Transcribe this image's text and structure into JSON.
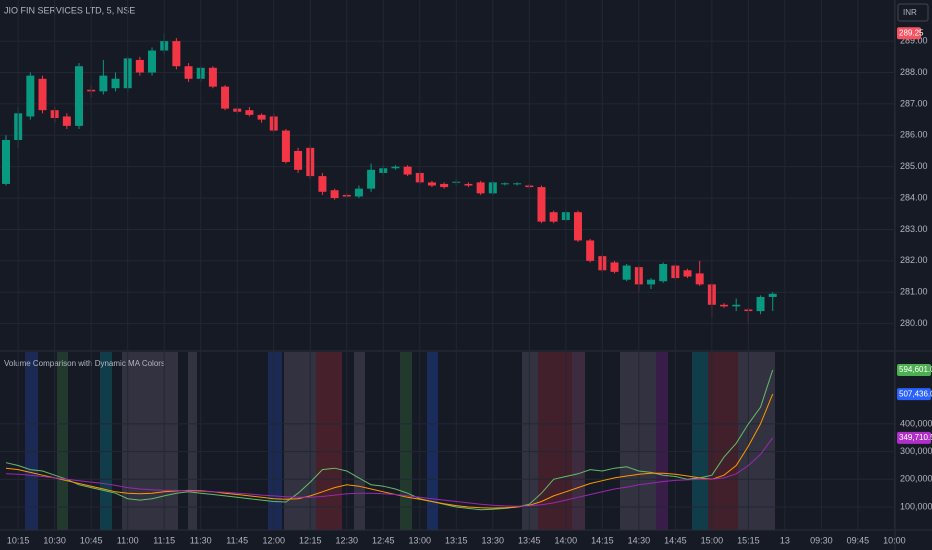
{
  "chart_data": [
    {
      "type": "candlestick",
      "title": "JIO FIN SERVICES LTD, 5, NSE",
      "currency": "INR",
      "up_color": "#089981",
      "down_color": "#f23645",
      "open": [
        284.45,
        285.85,
        286.6,
        287.8,
        286.8,
        286.6,
        286.3,
        287.45,
        287.4,
        287.5,
        287.5,
        288.4,
        288.0,
        288.7,
        289.0,
        288.2,
        287.8,
        288.15,
        287.55,
        286.85,
        286.8,
        286.65,
        286.6,
        286.15,
        285.5,
        285.6,
        284.7,
        284.25,
        284.1,
        284.05,
        284.3,
        284.8,
        284.95,
        285.0,
        284.8,
        284.5,
        284.45,
        284.5,
        284.45,
        284.5,
        284.15,
        284.45,
        284.45,
        284.4,
        284.35,
        283.55,
        283.3,
        283.55,
        282.65,
        282.15,
        281.95,
        281.4,
        281.8,
        281.25,
        281.35,
        281.85,
        281.7,
        281.6,
        281.25,
        280.6,
        280.55,
        280.45,
        280.4,
        280.85,
        null,
        null,
        null,
        null,
        null,
        null,
        null,
        null,
        null,
        null
      ],
      "high": [
        286.0,
        286.9,
        288.0,
        287.9,
        286.9,
        286.7,
        288.3,
        287.6,
        288.4,
        288.0,
        288.5,
        288.5,
        288.8,
        289.25,
        289.1,
        288.3,
        288.2,
        288.2,
        287.6,
        286.9,
        286.9,
        286.7,
        286.7,
        286.2,
        285.6,
        285.7,
        284.8,
        284.3,
        284.15,
        284.4,
        285.1,
        285.05,
        285.05,
        285.05,
        284.85,
        284.55,
        284.5,
        284.6,
        284.5,
        284.55,
        284.55,
        284.5,
        284.5,
        284.45,
        284.4,
        283.6,
        283.6,
        283.6,
        282.7,
        282.2,
        282.0,
        281.9,
        281.85,
        281.45,
        281.95,
        281.9,
        281.75,
        282.0,
        281.3,
        280.65,
        280.8,
        280.5,
        280.9,
        281.0,
        null,
        null,
        null,
        null,
        null,
        null,
        null,
        null,
        null,
        null
      ],
      "low": [
        284.4,
        285.6,
        286.5,
        286.7,
        286.4,
        286.2,
        286.2,
        287.2,
        287.3,
        287.4,
        287.4,
        287.9,
        287.9,
        288.6,
        288.1,
        287.7,
        287.7,
        287.5,
        286.8,
        286.7,
        286.6,
        286.4,
        286.1,
        285.1,
        284.8,
        284.6,
        284.1,
        283.95,
        284.0,
        284.0,
        284.2,
        284.75,
        284.9,
        284.7,
        284.45,
        284.35,
        284.3,
        284.4,
        284.35,
        284.1,
        284.1,
        284.4,
        284.4,
        284.3,
        283.2,
        283.2,
        283.25,
        282.6,
        281.95,
        281.65,
        281.6,
        281.35,
        281.0,
        281.1,
        281.3,
        281.4,
        281.45,
        281.2,
        280.2,
        280.5,
        280.4,
        280.0,
        280.3,
        280.4,
        null,
        null,
        null,
        null,
        null,
        null,
        null,
        null,
        null,
        null
      ],
      "close": [
        285.85,
        286.7,
        287.9,
        286.8,
        286.55,
        286.3,
        288.2,
        287.4,
        287.9,
        287.8,
        288.45,
        288.0,
        288.7,
        289.0,
        288.2,
        287.8,
        288.15,
        287.55,
        286.85,
        286.75,
        286.65,
        286.5,
        286.15,
        285.15,
        284.9,
        284.7,
        284.2,
        284.0,
        284.05,
        284.3,
        284.9,
        284.95,
        285.0,
        284.75,
        284.5,
        284.4,
        284.35,
        284.52,
        284.4,
        284.15,
        284.5,
        284.47,
        284.47,
        284.35,
        283.25,
        283.25,
        283.55,
        282.65,
        282.0,
        281.7,
        281.65,
        281.85,
        281.25,
        281.4,
        281.9,
        281.45,
        281.5,
        281.25,
        280.6,
        280.55,
        280.6,
        280.4,
        280.85,
        280.95,
        null,
        null,
        null,
        null,
        null,
        null,
        null,
        null,
        null,
        null
      ],
      "ylim": [
        279.16,
        290.31
      ],
      "yticks": [
        {
          "value": 280,
          "label": "280.00"
        },
        {
          "value": 281,
          "label": "281.00"
        },
        {
          "value": 282,
          "label": "282.00"
        },
        {
          "value": 283,
          "label": "283.00"
        },
        {
          "value": 284,
          "label": "284.00"
        },
        {
          "value": 285,
          "label": "285.00"
        },
        {
          "value": 286,
          "label": "286.00"
        },
        {
          "value": 287,
          "label": "287.00"
        },
        {
          "value": 288,
          "label": "288.00"
        },
        {
          "value": 289,
          "label": "289.00"
        }
      ],
      "grid": true,
      "price_label": {
        "value": 289.25,
        "label": "289.25",
        "color": "#f7525f"
      }
    },
    {
      "type": "line",
      "title": "Volume Comparison with Dynamic MA Colors",
      "categories": [
        null,
        "10:15",
        null,
        null,
        "10:30",
        null,
        null,
        "10:45",
        null,
        null,
        "11:00",
        null,
        null,
        "11:15",
        null,
        null,
        "11:30",
        null,
        null,
        "11:45",
        null,
        null,
        "12:00",
        null,
        null,
        "12:15",
        null,
        null,
        "12:30",
        null,
        null,
        "12:45",
        null,
        null,
        "13:00",
        null,
        null,
        "13:15",
        null,
        null,
        "13:30",
        null,
        null,
        "13:45",
        null,
        null,
        "14:00",
        null,
        null,
        "14:15",
        null,
        null,
        "14:30",
        null,
        null,
        "14:45",
        null,
        null,
        "15:00",
        null,
        null,
        "15:15",
        null,
        null,
        "13",
        null,
        null,
        "09:30",
        null,
        null,
        "09:45",
        null,
        null,
        "10:00"
      ],
      "series": [
        {
          "color": "#66bb6a",
          "values": [
            260000,
            250000,
            235000,
            230000,
            215000,
            200000,
            180000,
            170000,
            160000,
            150000,
            130000,
            125000,
            130000,
            140000,
            150000,
            155000,
            150000,
            145000,
            140000,
            135000,
            130000,
            125000,
            120000,
            118000,
            150000,
            190000,
            235000,
            240000,
            230000,
            205000,
            180000,
            175000,
            165000,
            150000,
            130000,
            120000,
            110000,
            100000,
            95000,
            90000,
            92000,
            95000,
            100000,
            110000,
            150000,
            200000,
            210000,
            220000,
            235000,
            230000,
            240000,
            245000,
            230000,
            225000,
            215000,
            210000,
            200000,
            205000,
            215000,
            280000,
            330000,
            400000,
            460000,
            594601,
            null,
            null,
            null,
            null,
            null,
            null,
            null,
            null,
            null,
            null
          ]
        },
        {
          "color": "#ff9800",
          "values": [
            240000,
            235000,
            225000,
            215000,
            205000,
            195000,
            185000,
            175000,
            165000,
            155000,
            150000,
            148000,
            150000,
            155000,
            158000,
            160000,
            158000,
            155000,
            150000,
            145000,
            140000,
            135000,
            130000,
            128000,
            130000,
            140000,
            155000,
            170000,
            180000,
            175000,
            165000,
            155000,
            145000,
            135000,
            128000,
            120000,
            112000,
            105000,
            100000,
            97000,
            96000,
            97000,
            100000,
            106000,
            120000,
            140000,
            155000,
            170000,
            185000,
            195000,
            205000,
            212000,
            218000,
            222000,
            222000,
            218000,
            212000,
            205000,
            200000,
            215000,
            250000,
            320000,
            400000,
            507436,
            null,
            null,
            null,
            null,
            null,
            null,
            null,
            null,
            null,
            null
          ]
        },
        {
          "color": "#9c27b0",
          "values": [
            220000,
            218000,
            215000,
            210000,
            205000,
            200000,
            195000,
            190000,
            185000,
            178000,
            170000,
            165000,
            162000,
            160000,
            160000,
            158000,
            156000,
            155000,
            153000,
            150000,
            147000,
            143000,
            140000,
            137000,
            135000,
            135000,
            138000,
            143000,
            148000,
            150000,
            150000,
            148000,
            145000,
            140000,
            135000,
            130000,
            125000,
            120000,
            115000,
            110000,
            106000,
            104000,
            103000,
            104000,
            108000,
            115000,
            125000,
            135000,
            145000,
            155000,
            165000,
            172000,
            180000,
            186000,
            192000,
            196000,
            198000,
            200000,
            200000,
            205000,
            220000,
            250000,
            290000,
            349710.5,
            null,
            null,
            null,
            null,
            null,
            null,
            null,
            null,
            null,
            null
          ]
        }
      ],
      "ylim": [
        17000,
        659600
      ],
      "yticks": [
        {
          "value": 100000,
          "label": "100,000.00"
        },
        {
          "value": 200000,
          "label": "200,000.00"
        },
        {
          "value": 300000,
          "label": "300,000.00"
        },
        {
          "value": 400000,
          "label": "400,000.00"
        }
      ],
      "grid": true,
      "end_labels": [
        {
          "value": 594601,
          "label": "594,601.00",
          "color": "#4caf50"
        },
        {
          "value": 507436,
          "label": "507,436.00",
          "color": "#2962ff"
        },
        {
          "value": 349710.5,
          "label": "349,710.50",
          "color": "#b02fc9"
        }
      ]
    }
  ]
}
